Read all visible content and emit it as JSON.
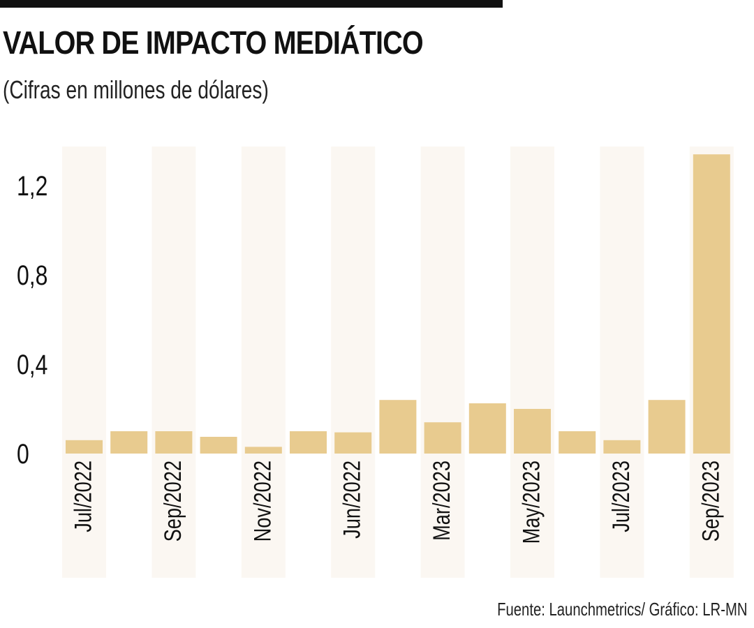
{
  "header": {
    "title": "VALOR DE IMPACTO MEDIÁTICO",
    "subtitle": "(Cifras en millones de dólares)"
  },
  "footer": {
    "source": "Fuente: Launchmetrics/ Gráfico: LR-MN"
  },
  "chart_data": {
    "type": "bar",
    "title": "VALOR DE IMPACTO MEDIÁTICO",
    "subtitle": "(Cifras en millones de dólares)",
    "categories": [
      "Jul/2022",
      "",
      "Sep/2022",
      "",
      "Nov/2022",
      "",
      "Jun/2022",
      "",
      "Mar/2023",
      "",
      "May/2023",
      "",
      "Jul/2023",
      "",
      "Sep/2023"
    ],
    "values": [
      0.06,
      0.1,
      0.1,
      0.075,
      0.03,
      0.1,
      0.095,
      0.24,
      0.14,
      0.225,
      0.2,
      0.1,
      0.06,
      0.24,
      1.34
    ],
    "yticks": [
      0,
      0.4,
      0.8,
      1.2
    ],
    "ytick_labels": [
      "0",
      "0,4",
      "0,8",
      "1,2"
    ],
    "ylim": [
      0,
      1.35
    ],
    "grid": false,
    "legend": "none",
    "colors": {
      "bar": "#E8CB8F",
      "band": "#FBF7F2"
    }
  }
}
